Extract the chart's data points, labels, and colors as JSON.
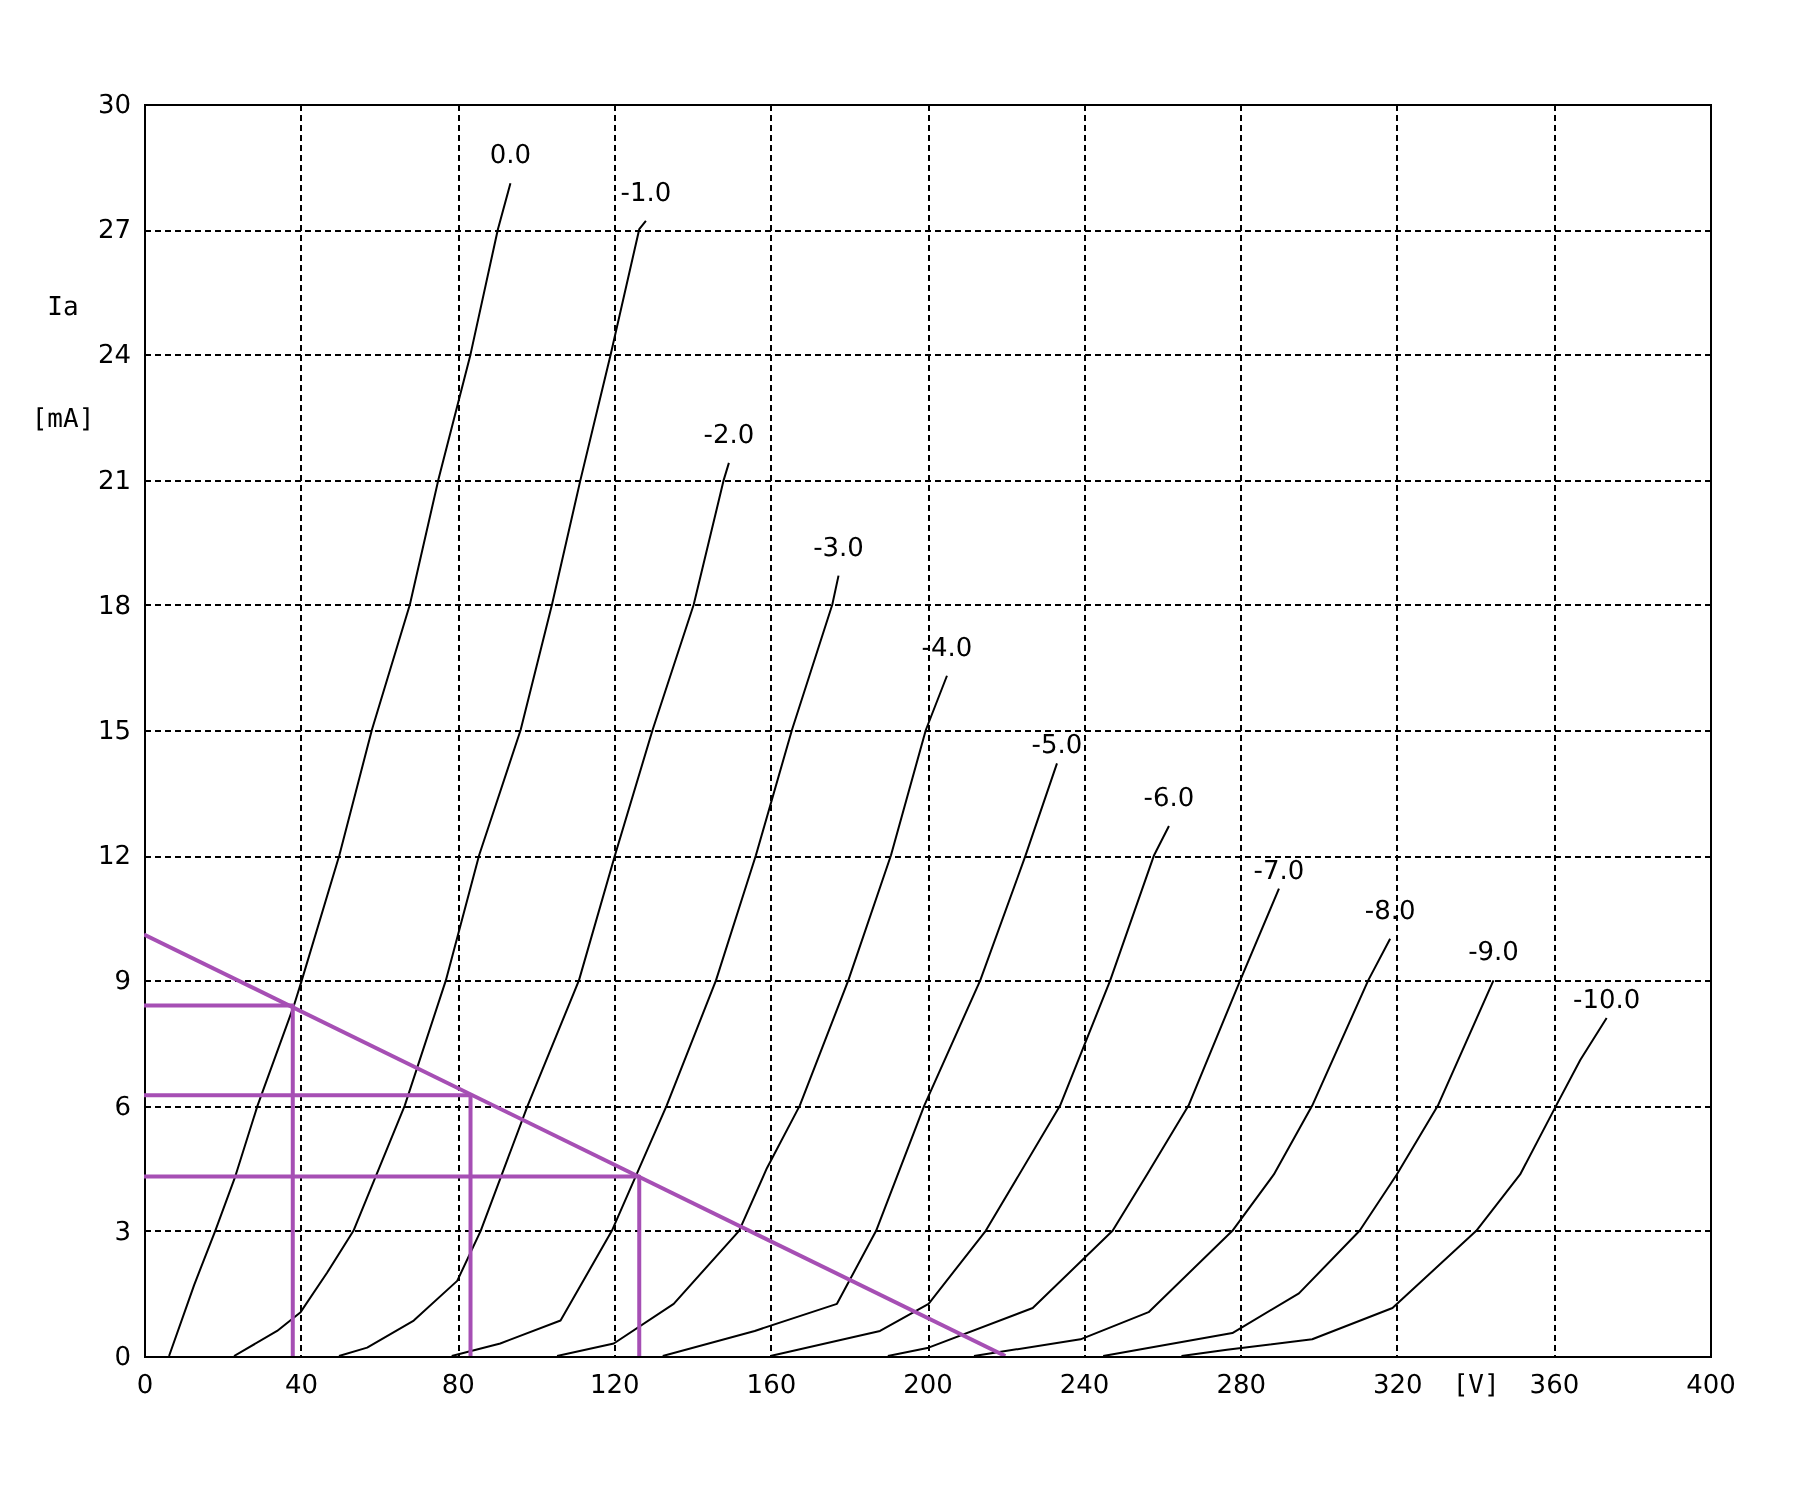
{
  "chart_data": {
    "type": "line",
    "xlabel": "[V]",
    "ylabel": "Ia [mA]",
    "xlim": [
      0,
      400
    ],
    "ylim": [
      0,
      30
    ],
    "xticks": [
      0,
      40,
      80,
      120,
      160,
      200,
      240,
      280,
      320,
      360,
      400
    ],
    "yticks": [
      0,
      3,
      6,
      9,
      12,
      15,
      18,
      21,
      24,
      27,
      30
    ],
    "grid": true,
    "series": [
      {
        "name": "0.0",
        "color": "#000000",
        "x": [
          6.4,
          12.8,
          18.2,
          23.3,
          29,
          38.3,
          40.3,
          49.9,
          58.2,
          67.9,
          75.2,
          83.4,
          90.4,
          93.6
        ],
        "values": [
          0,
          1.7,
          3,
          4.3,
          6,
          8.4,
          9,
          12,
          15,
          18,
          21,
          24,
          27,
          28.1
        ]
      },
      {
        "name": "-1.0",
        "color": "#000000",
        "x": [
          23,
          34,
          40,
          46.8,
          53.5,
          66.6,
          77.1,
          85.6,
          96.2,
          104.2,
          111.5,
          119.2,
          126.5,
          128.2
        ],
        "values": [
          0,
          0.6,
          1.05,
          2,
          3,
          6,
          9,
          12,
          15,
          18,
          21,
          24,
          27,
          27.2
        ]
      },
      {
        "name": "-2.0",
        "color": "#000000",
        "x": [
          49.8,
          57,
          68.9,
          80,
          86,
          98,
          111.1,
          120.3,
          129.9,
          140.4,
          148.1,
          149.4
        ],
        "values": [
          0,
          0.2,
          0.85,
          1.8,
          3,
          6,
          9,
          12,
          15,
          18,
          21,
          21.4
        ]
      },
      {
        "name": "-3.0",
        "color": "#000000",
        "x": [
          78.6,
          91,
          106.4,
          119.5,
          133.5,
          146.1,
          156.3,
          165.5,
          175.8,
          177.4
        ],
        "values": [
          0,
          0.3,
          0.85,
          3,
          6,
          9,
          12,
          15,
          18,
          18.7
        ]
      },
      {
        "name": "-4.0",
        "color": "#000000",
        "x": [
          105.5,
          120,
          135.3,
          152,
          159.1,
          167.5,
          179.9,
          190.8,
          199.7,
          205.1
        ],
        "values": [
          0,
          0.3,
          1.25,
          3,
          4.5,
          6,
          9,
          12,
          15,
          16.3
        ]
      },
      {
        "name": "-5.0",
        "color": "#000000",
        "x": [
          132.5,
          156,
          177,
          187,
          199.3,
          213.6,
          225.2,
          233.2
        ],
        "values": [
          0,
          0.6,
          1.25,
          3,
          6,
          9,
          12,
          14.2
        ]
      },
      {
        "name": "-6.0",
        "color": "#000000",
        "x": [
          160,
          188,
          200.4,
          215,
          234,
          246.8,
          258,
          261.8
        ],
        "values": [
          0,
          0.6,
          1.25,
          3,
          6,
          9,
          12,
          12.7
        ]
      },
      {
        "name": "-7.0",
        "color": "#000000",
        "x": [
          190,
          200.4,
          227,
          247.4,
          256.2,
          266.8,
          280,
          289.9
        ],
        "values": [
          0,
          0.2,
          1.15,
          3,
          4.35,
          6,
          9,
          11.2
        ]
      },
      {
        "name": "-8.0",
        "color": "#000000",
        "x": [
          212,
          239.2,
          256.6,
          278,
          288.6,
          298.4,
          312.7,
          318.3
        ],
        "values": [
          0,
          0.4,
          1.05,
          3,
          4.35,
          6,
          9,
          10
        ]
      },
      {
        "name": "-9.0",
        "color": "#000000",
        "x": [
          245,
          278,
          295,
          310.5,
          320,
          330.5,
          344.7
        ],
        "values": [
          0,
          0.55,
          1.5,
          3,
          4.35,
          6,
          9
        ]
      },
      {
        "name": "-10.0",
        "color": "#000000",
        "x": [
          265,
          276.6,
          298.4,
          318.9,
          340.3,
          351.5,
          360.7,
          366.9,
          373.6
        ],
        "values": [
          0,
          0.15,
          0.4,
          1.15,
          3,
          4.35,
          6,
          7.1,
          8.1
        ]
      },
      {
        "color": "#a64fb4",
        "x": [
          0,
          220
        ],
        "values": [
          10.1,
          0
        ]
      },
      {
        "color": "#a64fb4",
        "x": [
          0,
          38,
          38
        ],
        "values": [
          8.4,
          8.4,
          0
        ]
      },
      {
        "color": "#a64fb4",
        "x": [
          0,
          83.4,
          83.4
        ],
        "values": [
          6.25,
          6.25,
          0
        ]
      },
      {
        "color": "#a64fb4",
        "x": [
          0,
          126.5,
          126.5
        ],
        "values": [
          4.3,
          4.3,
          0
        ]
      }
    ]
  }
}
